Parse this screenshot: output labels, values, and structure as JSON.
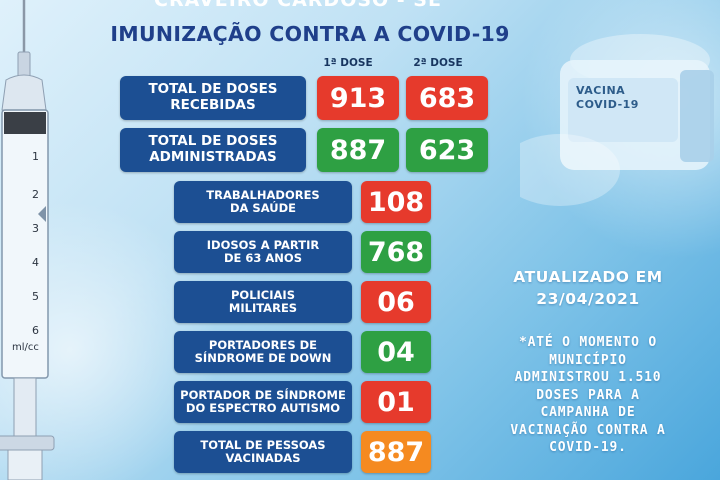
{
  "header": {
    "top_text": "CRAVEIRO CARDOSO - SE",
    "title": "IMUNIZAÇÃO CONTRA A COVID-19"
  },
  "columns": {
    "dose1": "1ª DOSE",
    "dose2": "2ª DOSE"
  },
  "summary": [
    {
      "label_line1": "TOTAL DE DOSES",
      "label_line2": "RECEBIDAS",
      "dose1": "913",
      "dose2": "683"
    },
    {
      "label_line1": "TOTAL DE DOSES",
      "label_line2": "ADMINISTRADAS",
      "dose1": "887",
      "dose2": "623"
    }
  ],
  "groups": [
    {
      "label_line1": "TRABALHADORES",
      "label_line2": "DA SAÚDE",
      "value": "108",
      "color": "#e63a2c"
    },
    {
      "label_line1": "IDOSOS A PARTIR",
      "label_line2": "DE 63 ANOS",
      "value": "768",
      "color": "#2ea043"
    },
    {
      "label_line1": "POLICIAIS",
      "label_line2": "MILITARES",
      "value": "06",
      "color": "#e63a2c"
    },
    {
      "label_line1": "PORTADORES DE",
      "label_line2": "SÍNDROME DE DOWN",
      "value": "04",
      "color": "#2ea043"
    },
    {
      "label_line1": "PORTADOR DE SÍNDROME",
      "label_line2": "DO ESPECTRO AUTISMO",
      "value": "01",
      "color": "#e63a2c"
    },
    {
      "label_line1": "TOTAL DE PESSOAS",
      "label_line2": "VACINADAS",
      "value": "887",
      "color": "#f58a20"
    }
  ],
  "updated": {
    "line1": "ATUALIZADO EM",
    "line2": "23/04/2021"
  },
  "note": {
    "line1": "*ATÉ O MOMENTO O",
    "line2": "MUNICÍPIO",
    "line3": "ADMINISTROU 1.510",
    "line4": "DOSES PARA A",
    "line5": "CAMPANHA DE",
    "line6": "VACINAÇÃO CONTRA A",
    "line7": "COVID-19."
  },
  "vial": {
    "line1": "VACINA",
    "line2": "COVID-19"
  },
  "syringe": {
    "scale": [
      "1",
      "2",
      "3",
      "4",
      "5",
      "6"
    ],
    "unit": "ml/cc"
  },
  "colors": {
    "navy": "#1c4f93",
    "red": "#e63a2c",
    "green": "#2ea043",
    "orange": "#f58a20",
    "title": "#1f3f8a"
  }
}
